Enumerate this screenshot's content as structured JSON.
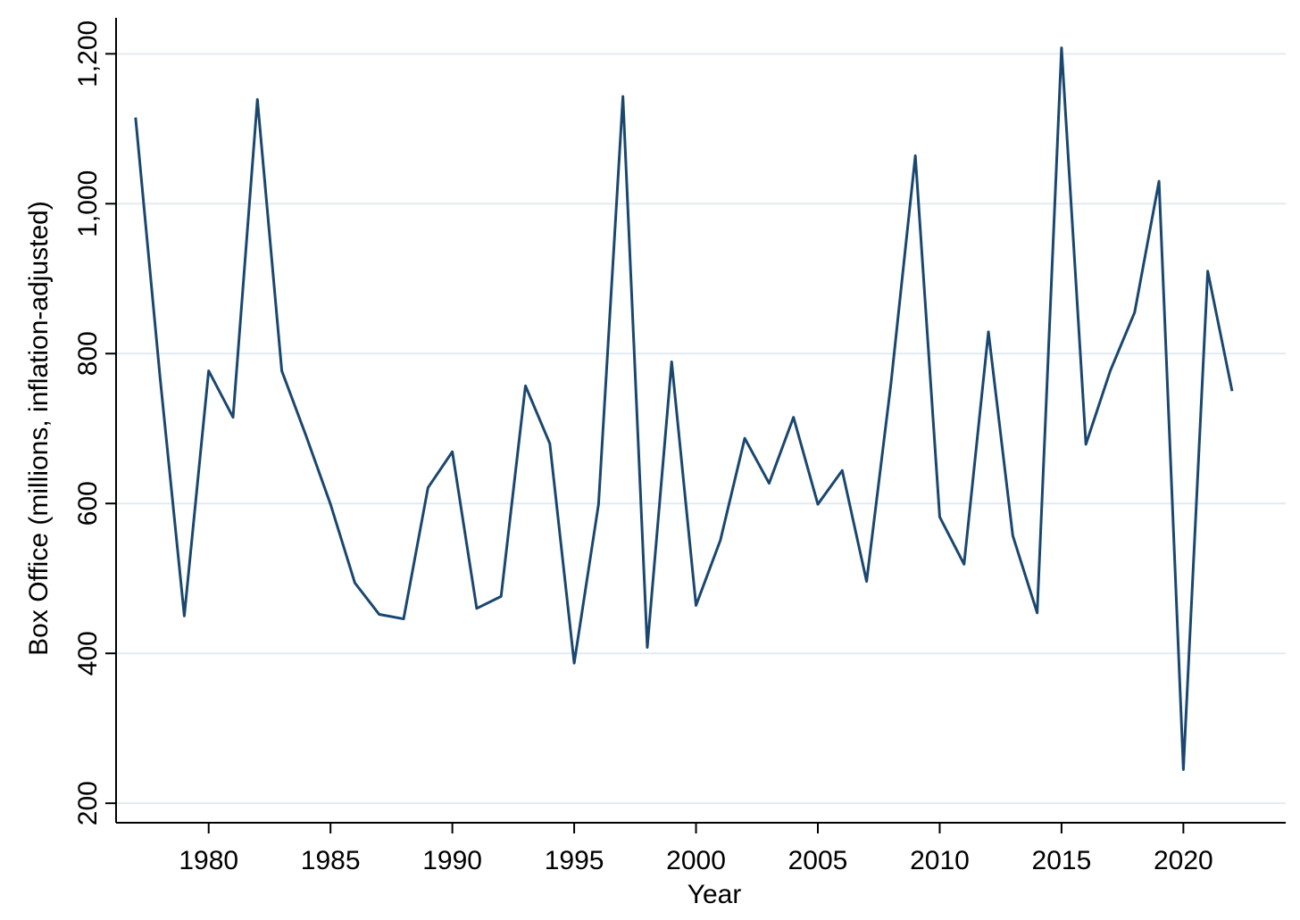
{
  "chart_data": {
    "type": "line",
    "x_label": "Year",
    "y_label": "Box Office (millions, inflation-adjusted)",
    "x": [
      1977,
      1978,
      1979,
      1980,
      1981,
      1982,
      1983,
      1984,
      1985,
      1986,
      1987,
      1988,
      1989,
      1990,
      1991,
      1992,
      1993,
      1994,
      1995,
      1996,
      1997,
      1998,
      1999,
      2000,
      2001,
      2002,
      2003,
      2004,
      2005,
      2006,
      2007,
      2008,
      2009,
      2010,
      2011,
      2012,
      2013,
      2014,
      2015,
      2016,
      2017,
      2018,
      2019,
      2020,
      2021,
      2022
    ],
    "values": [
      1115,
      770,
      450,
      777,
      715,
      1139,
      777,
      690,
      599,
      494,
      452,
      446,
      621,
      669,
      460,
      476,
      757,
      680,
      387,
      599,
      1143,
      408,
      789,
      464,
      551,
      687,
      627,
      715,
      599,
      644,
      496,
      760,
      1064,
      582,
      519,
      829,
      557,
      454,
      1208,
      679,
      777,
      855,
      1030,
      245,
      910,
      750
    ],
    "color": "#1a476f",
    "xlim": [
      1976.2,
      2024.2
    ],
    "xticks": [
      1980,
      1985,
      1990,
      1995,
      2000,
      2005,
      2010,
      2015,
      2020
    ],
    "ylim": [
      174,
      1248
    ],
    "yticks": [
      200,
      400,
      600,
      800,
      {
        "value": 1000,
        "label": "1,000"
      },
      {
        "value": 1200,
        "label": "1,200"
      }
    ],
    "grid": true
  }
}
